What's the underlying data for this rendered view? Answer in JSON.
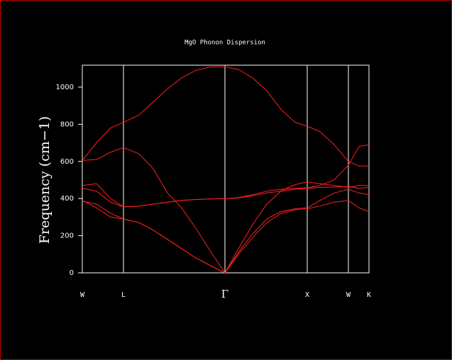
{
  "chart_data": {
    "type": "line",
    "title": "MgO Phonon Dispersion",
    "y_label": "Frequency (cm−1)",
    "x": [
      0,
      20,
      40,
      58,
      80,
      100,
      120,
      140,
      160,
      180,
      201,
      220,
      240,
      260,
      280,
      300,
      317,
      335,
      355,
      375,
      390,
      404
    ],
    "xlim": [
      0,
      404
    ],
    "xticks": [
      {
        "value": 0,
        "label": "W"
      },
      {
        "value": 58,
        "label": "L"
      },
      {
        "value": 201,
        "label": "Γ"
      },
      {
        "value": 317,
        "label": "X"
      },
      {
        "value": 375,
        "label": "W"
      },
      {
        "value": 404,
        "label": "K"
      }
    ],
    "ylim": [
      0,
      1118
    ],
    "yticks": [
      0,
      200,
      400,
      600,
      800,
      1000
    ],
    "series": [
      {
        "color": "#ff2020",
        "values": [
          605,
          700,
          780,
          810,
          850,
          920,
          990,
          1050,
          1090,
          1108,
          1110,
          1095,
          1050,
          980,
          880,
          810,
          790,
          760,
          690,
          600,
          575,
          575
        ]
      },
      {
        "color": "#ff2020",
        "values": [
          605,
          610,
          650,
          675,
          640,
          560,
          430,
          350,
          240,
          120,
          0,
          130,
          260,
          370,
          440,
          475,
          490,
          480,
          470,
          460,
          470,
          470
        ]
      },
      {
        "color": "#ff2020",
        "values": [
          470,
          480,
          400,
          355,
          360,
          370,
          380,
          390,
          395,
          398,
          400,
          405,
          420,
          440,
          450,
          455,
          458,
          470,
          500,
          580,
          680,
          690
        ]
      },
      {
        "color": "#ff2020",
        "values": [
          455,
          440,
          380,
          355,
          360,
          370,
          380,
          390,
          395,
          398,
          400,
          403,
          415,
          430,
          440,
          450,
          455,
          460,
          462,
          465,
          455,
          460
        ]
      },
      {
        "color": "#ff2020",
        "values": [
          390,
          350,
          300,
          290,
          270,
          230,
          180,
          130,
          80,
          40,
          0,
          100,
          190,
          270,
          320,
          340,
          345,
          360,
          380,
          390,
          350,
          330
        ]
      },
      {
        "color": "#ff2020",
        "values": [
          385,
          370,
          320,
          290,
          270,
          230,
          180,
          130,
          80,
          40,
          0,
          110,
          210,
          290,
          330,
          345,
          350,
          390,
          430,
          450,
          430,
          420
        ]
      }
    ]
  }
}
